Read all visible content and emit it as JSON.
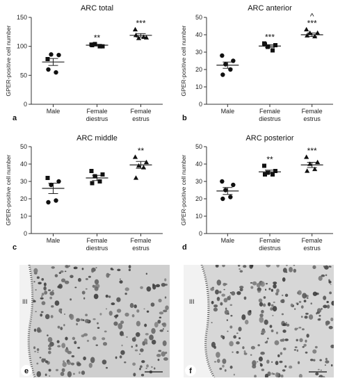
{
  "chart_data": [
    {
      "panel": "a",
      "type": "scatter",
      "title": "ARC total",
      "ylabel": "GPER-positive cell number",
      "ylim": [
        0,
        150
      ],
      "yticks": [
        "0",
        "50",
        "100",
        "150"
      ],
      "categories": [
        "Male",
        "Female\ndiestrus",
        "Female\nestrus"
      ],
      "groups": [
        {
          "marker": "circle-square",
          "points": [
            78,
            85,
            86,
            55,
            60
          ],
          "mean": 73,
          "sem": 6,
          "sig": ""
        },
        {
          "marker": "square",
          "points": [
            103,
            100,
            104,
            100,
            102
          ],
          "mean": 102,
          "sem": 1.5,
          "sig": "**"
        },
        {
          "marker": "triangle",
          "points": [
            129,
            115,
            114,
            116,
            119
          ],
          "mean": 119,
          "sem": 3,
          "sig": "***"
        }
      ]
    },
    {
      "panel": "b",
      "type": "scatter",
      "title": "ARC anterior",
      "ylabel": "GPER-positive cell number",
      "ylim": [
        0,
        50
      ],
      "yticks": [
        "0",
        "10",
        "20",
        "30",
        "40",
        "50"
      ],
      "categories": [
        "Male",
        "Female\ndiestrus",
        "Female\nestrus"
      ],
      "groups": [
        {
          "marker": "circle",
          "points": [
            28,
            25,
            23,
            20,
            17
          ],
          "mean": 22.5,
          "sem": 1.8,
          "sig": ""
        },
        {
          "marker": "square",
          "points": [
            35,
            34,
            33,
            31,
            34.5
          ],
          "mean": 33.5,
          "sem": 0.8,
          "sig": "***"
        },
        {
          "marker": "triangle",
          "points": [
            43,
            41,
            41,
            39,
            39.5
          ],
          "mean": 40,
          "sem": 1,
          "sig": "***",
          "sig2": "^"
        }
      ]
    },
    {
      "panel": "c",
      "type": "scatter",
      "title": "ARC middle",
      "ylabel": "GPER-positive cell number",
      "ylim": [
        0,
        50
      ],
      "yticks": [
        "0",
        "10",
        "20",
        "30",
        "40",
        "50"
      ],
      "categories": [
        "Male",
        "Female\ndiestrus",
        "Female\nestrus"
      ],
      "groups": [
        {
          "marker": "circle-square",
          "points": [
            32,
            30,
            28,
            19,
            18
          ],
          "mean": 26,
          "sem": 3,
          "sig": ""
        },
        {
          "marker": "square",
          "points": [
            36,
            34,
            33,
            30,
            29
          ],
          "mean": 32,
          "sem": 1.5,
          "sig": ""
        },
        {
          "marker": "triangle",
          "points": [
            44,
            41,
            39,
            38,
            32
          ],
          "mean": 39.5,
          "sem": 2,
          "sig": "**"
        }
      ]
    },
    {
      "panel": "d",
      "type": "scatter",
      "title": "ARC posterior",
      "ylabel": "GPER-positive cell number",
      "ylim": [
        0,
        50
      ],
      "yticks": [
        "0",
        "10",
        "20",
        "30",
        "40",
        "50"
      ],
      "categories": [
        "Male",
        "Female\ndiestrus",
        "Female\nestrus"
      ],
      "groups": [
        {
          "marker": "circle",
          "points": [
            30,
            28,
            25,
            21,
            20
          ],
          "mean": 24.5,
          "sem": 2,
          "sig": ""
        },
        {
          "marker": "square",
          "points": [
            39,
            36,
            35,
            34,
            34
          ],
          "mean": 35.5,
          "sem": 1,
          "sig": "**"
        },
        {
          "marker": "triangle",
          "points": [
            44,
            41,
            40,
            37,
            36
          ],
          "mean": 39.5,
          "sem": 1.5,
          "sig": "***"
        }
      ]
    }
  ],
  "micrographs": [
    {
      "panel": "e",
      "region_label": "III",
      "tone": "#cfcfcf"
    },
    {
      "panel": "f",
      "region_label": "III",
      "tone": "#d7d7d7"
    }
  ]
}
